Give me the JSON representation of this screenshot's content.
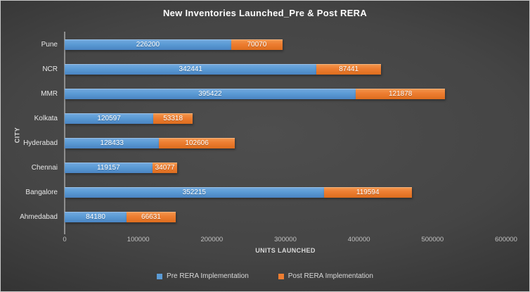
{
  "chart_data": {
    "type": "bar",
    "orientation": "horizontal-stacked",
    "title": "New Inventories Launched_Pre & Post RERA",
    "xlabel": "UNITS LAUNCHED",
    "ylabel": "CITY",
    "categories": [
      "Pune",
      "NCR",
      "MMR",
      "Kolkata",
      "Hyderabad",
      "Chennai",
      "Bangalore",
      "Ahmedabad"
    ],
    "series": [
      {
        "name": "Pre RERA Implementation",
        "color": "#5B9BD5",
        "values": [
          226200,
          342441,
          395422,
          120597,
          128433,
          119157,
          352215,
          84180
        ]
      },
      {
        "name": "Post RERA Implementation",
        "color": "#ED7D31",
        "values": [
          70070,
          87441,
          121878,
          53318,
          102606,
          34077,
          119594,
          66631
        ]
      }
    ],
    "xlim": [
      0,
      600000
    ],
    "xticks": [
      0,
      100000,
      200000,
      300000,
      400000,
      500000,
      600000
    ],
    "grid": false,
    "legend_position": "bottom",
    "colors": {
      "background_center": "#4e4e4e",
      "background_edge": "#2f2f2f",
      "title_text": "#ffffff",
      "axis_line": "#8f8f8f",
      "tick_text": "#c2c2c2",
      "category_text": "#e8e8e8",
      "data_label_text": "#ffffff",
      "legend_text": "#d9d9d9"
    }
  }
}
